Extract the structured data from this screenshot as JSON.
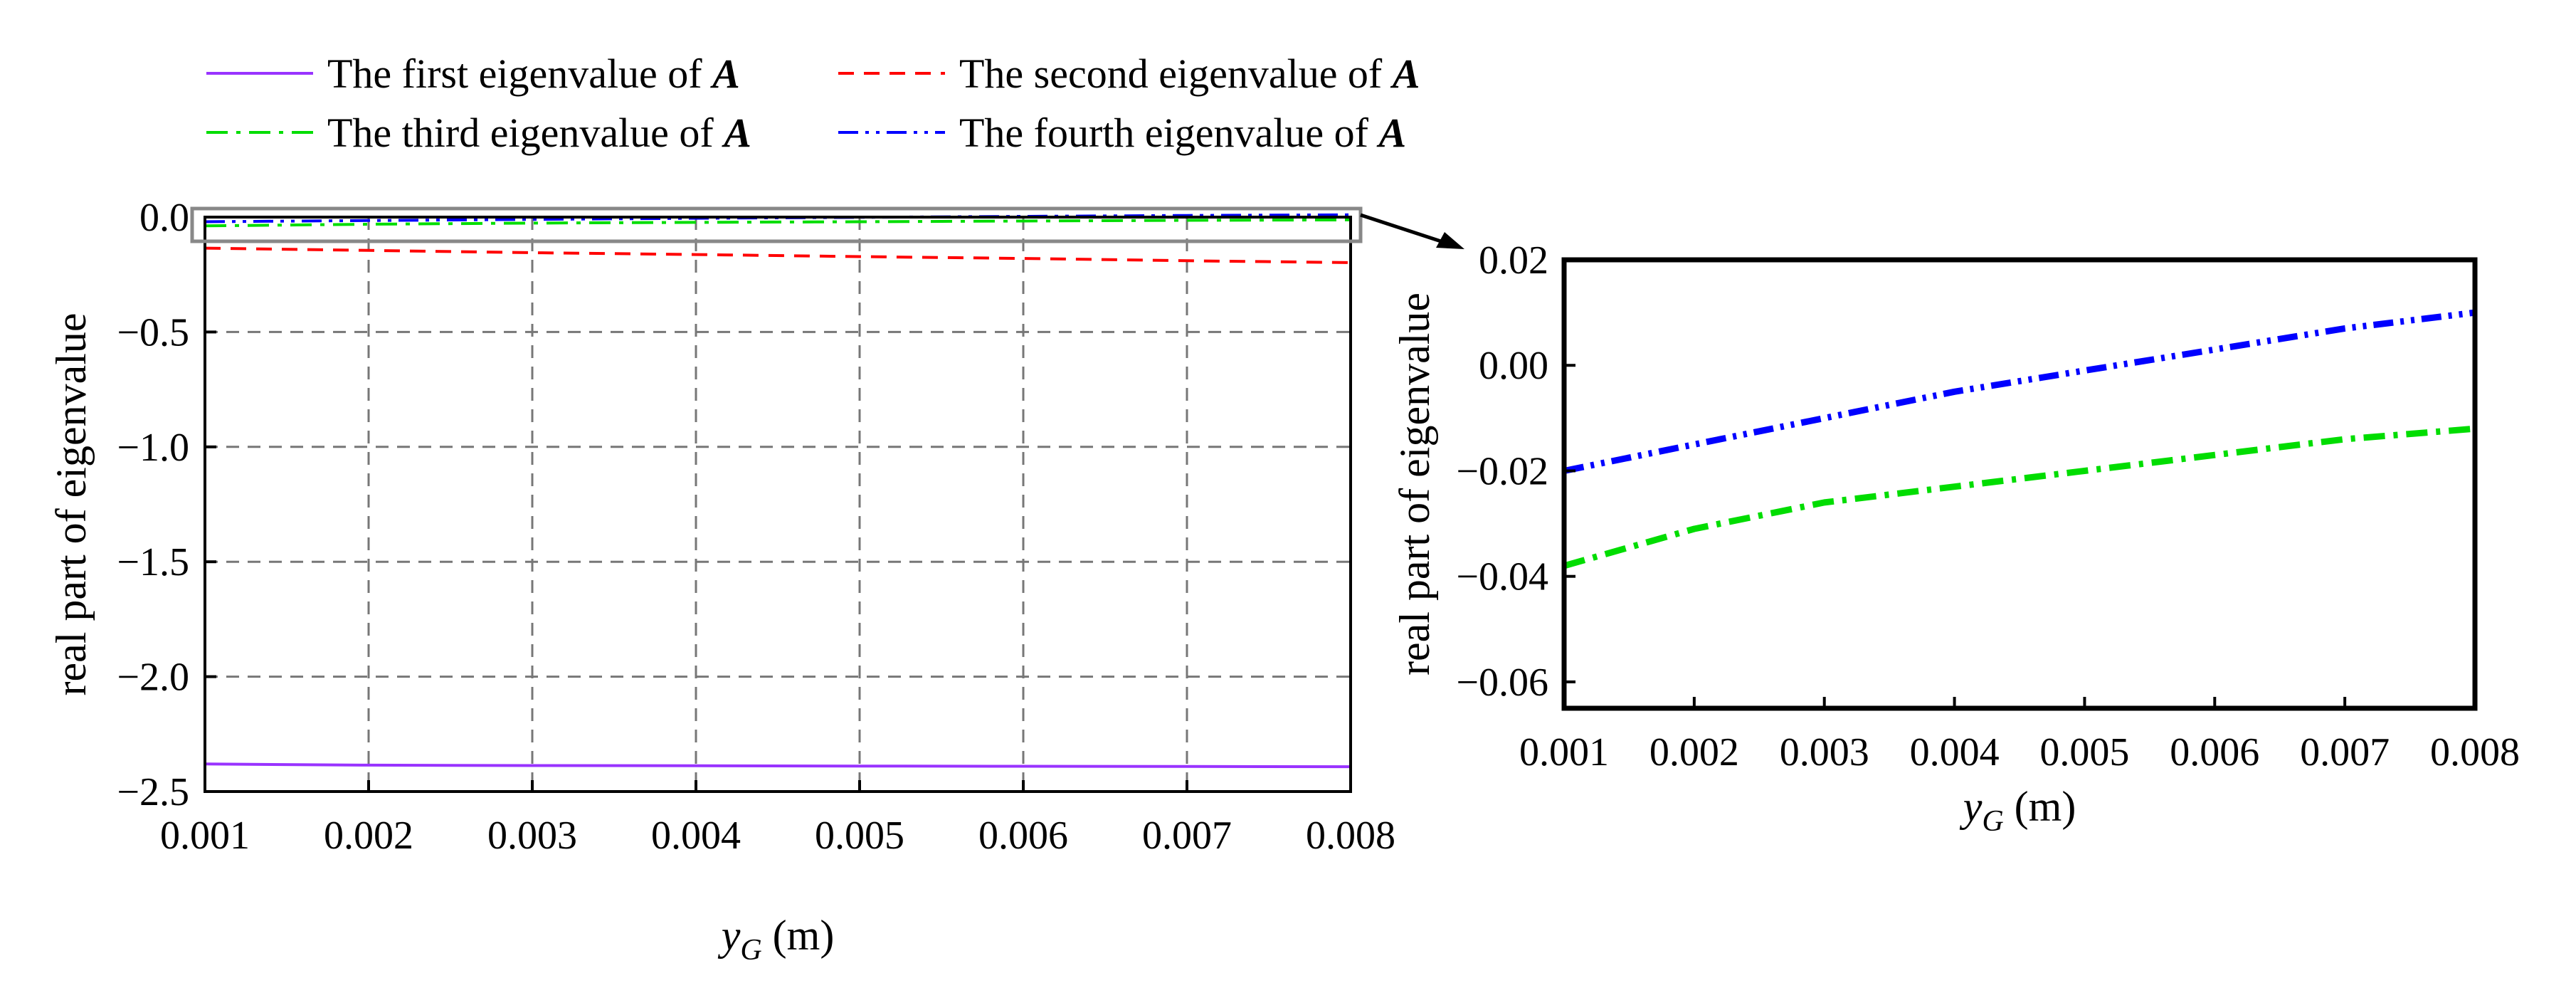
{
  "chart_data": [
    {
      "type": "line",
      "panel": "main",
      "xlabel": "y_G (m)",
      "ylabel": "real part of eigenvalue",
      "xlim": [
        0.001,
        0.008
      ],
      "ylim": [
        -2.5,
        0.0
      ],
      "grid": true,
      "xticks": [
        "0.001",
        "0.002",
        "0.003",
        "0.004",
        "0.005",
        "0.006",
        "0.007",
        "0.008"
      ],
      "yticks": [
        "0.0",
        "−0.5",
        "−1.0",
        "−1.5",
        "−2.0",
        "−2.5"
      ],
      "x": [
        0.001,
        0.002,
        0.003,
        0.004,
        0.005,
        0.006,
        0.007,
        0.008
      ],
      "series": [
        {
          "name": "The first eigenvalue of A",
          "color": "#9933ff",
          "style": "solid",
          "values": [
            -2.38,
            -2.385,
            -2.387,
            -2.388,
            -2.389,
            -2.39,
            -2.391,
            -2.392
          ]
        },
        {
          "name": "The second eigenvalue of A",
          "color": "#ff0000",
          "style": "dash",
          "values": [
            -0.135,
            -0.145,
            -0.155,
            -0.163,
            -0.172,
            -0.18,
            -0.19,
            -0.198
          ]
        },
        {
          "name": "The third eigenvalue of A",
          "color": "#00dd00",
          "style": "dashdot",
          "values": [
            -0.038,
            -0.031,
            -0.026,
            -0.023,
            -0.02,
            -0.017,
            -0.014,
            -0.012
          ]
        },
        {
          "name": "The fourth eigenvalue of A",
          "color": "#0000ff",
          "style": "dashdotdot",
          "values": [
            -0.02,
            -0.015,
            -0.01,
            -0.005,
            -0.001,
            0.003,
            0.007,
            0.01
          ]
        }
      ]
    },
    {
      "type": "line",
      "panel": "zoom",
      "xlabel": "y_G (m)",
      "ylabel": "real part of eigenvalue",
      "xlim": [
        0.001,
        0.008
      ],
      "ylim": [
        -0.065,
        0.02
      ],
      "grid": false,
      "xticks": [
        "0.001",
        "0.002",
        "0.003",
        "0.004",
        "0.005",
        "0.006",
        "0.007",
        "0.008"
      ],
      "yticks": [
        "0.02",
        "0.00",
        "−0.02",
        "−0.04",
        "−0.06"
      ],
      "x": [
        0.001,
        0.002,
        0.003,
        0.004,
        0.005,
        0.006,
        0.007,
        0.008
      ],
      "series": [
        {
          "name": "The third eigenvalue of A",
          "color": "#00dd00",
          "style": "dashdot",
          "values": [
            -0.038,
            -0.031,
            -0.026,
            -0.023,
            -0.02,
            -0.017,
            -0.014,
            -0.012
          ]
        },
        {
          "name": "The fourth eigenvalue of A",
          "color": "#0000ff",
          "style": "dashdotdot",
          "values": [
            -0.02,
            -0.015,
            -0.01,
            -0.005,
            -0.001,
            0.003,
            0.007,
            0.01
          ]
        }
      ]
    }
  ],
  "legend": {
    "items": [
      {
        "text": "The first eigenvalue of ",
        "var": "A",
        "color": "#9933ff",
        "style": "solid"
      },
      {
        "text": "The second eigenvalue of ",
        "var": "A",
        "color": "#ff0000",
        "style": "dash"
      },
      {
        "text": "The third eigenvalue of ",
        "var": "A",
        "color": "#00dd00",
        "style": "dashdot"
      },
      {
        "text": "The fourth eigenvalue of ",
        "var": "A",
        "color": "#0000ff",
        "style": "dashdotdot"
      }
    ]
  },
  "xlabel_parts": {
    "var": "y",
    "sub": "G",
    "unit": " (m)"
  }
}
